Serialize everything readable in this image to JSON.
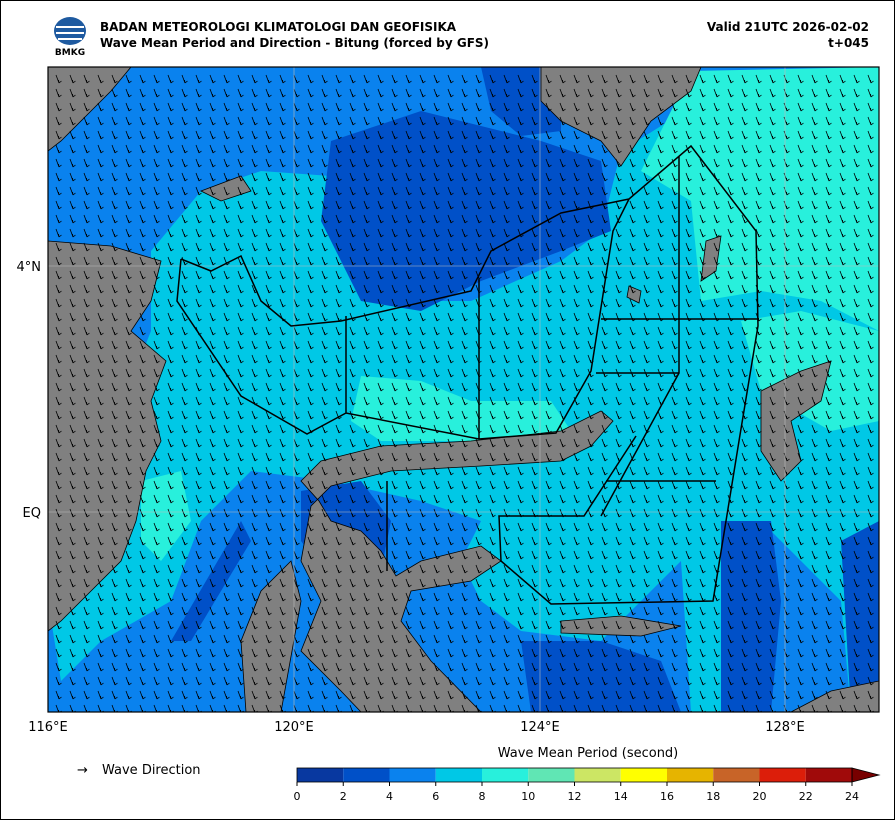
{
  "header": {
    "org": "BADAN METEOROLOGI KLIMATOLOGI DAN GEOFISIKA",
    "subtitle": "Wave Mean Period and Direction - Bitung (forced by GFS)",
    "valid": "Valid 21UTC 2026-02-02",
    "step": "t+045",
    "logo_text": "BMKG"
  },
  "map": {
    "lat_labels": [
      "4°N",
      "EQ"
    ],
    "lon_labels": [
      "116°E",
      "120°E",
      "124°E",
      "128°E"
    ]
  },
  "legend": {
    "arrow": "→",
    "direction": "Wave Direction"
  },
  "colorbar": {
    "label": "Wave Mean Period (second)",
    "range": [
      0,
      24
    ],
    "ticks": [
      0,
      2,
      4,
      6,
      8,
      10,
      12,
      14,
      16,
      18,
      20,
      22,
      24
    ],
    "colors": [
      "#0838a0",
      "#0050c8",
      "#0a82ee",
      "#00c8e6",
      "#28f0dc",
      "#60e6b4",
      "#cce664",
      "#ffff00",
      "#e6b400",
      "#c86428",
      "#dc1e0a",
      "#a00a0a"
    ],
    "extend_color": "#780000"
  }
}
